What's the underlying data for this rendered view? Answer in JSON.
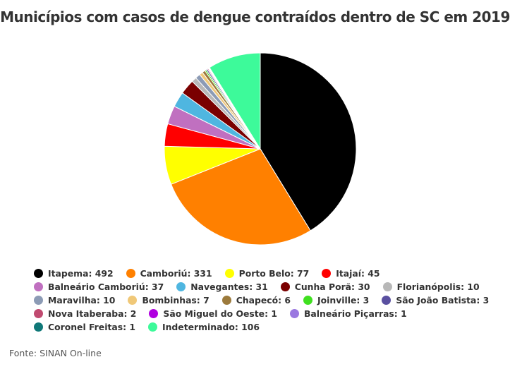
{
  "chart_data": {
    "type": "pie",
    "title": "Municípios com casos de dengue contraídos dentro de SC em 2019",
    "source": "Fonte: SINAN On-line",
    "slices": [
      {
        "label": "Itapema",
        "value": 492,
        "color": "#000000"
      },
      {
        "label": "Camboriú",
        "value": 331,
        "color": "#ff8000"
      },
      {
        "label": "Porto Belo",
        "value": 77,
        "color": "#ffff00"
      },
      {
        "label": "Itajaí",
        "value": 45,
        "color": "#ff0000"
      },
      {
        "label": "Balneário Camboriú",
        "value": 37,
        "color": "#c070c0"
      },
      {
        "label": "Navegantes",
        "value": 31,
        "color": "#4fb6e0"
      },
      {
        "label": "Cunha Porã",
        "value": 30,
        "color": "#7a0000"
      },
      {
        "label": "Florianópolis",
        "value": 10,
        "color": "#b8b8b8"
      },
      {
        "label": "Maravilha",
        "value": 10,
        "color": "#8c9bb5"
      },
      {
        "label": "Bombinhas",
        "value": 7,
        "color": "#f0c878"
      },
      {
        "label": "Chapecó",
        "value": 6,
        "color": "#9c7a3c"
      },
      {
        "label": "Joinville",
        "value": 3,
        "color": "#40e020"
      },
      {
        "label": "São João Batista",
        "value": 3,
        "color": "#5a50a0"
      },
      {
        "label": "Nova Itaberaba",
        "value": 2,
        "color": "#c04a70"
      },
      {
        "label": "São Miguel do Oeste",
        "value": 1,
        "color": "#b000e0"
      },
      {
        "label": "Balneário Piçarras",
        "value": 1,
        "color": "#9a78e0"
      },
      {
        "label": "Coronel Freitas",
        "value": 1,
        "color": "#107878"
      },
      {
        "label": "Indeterminado",
        "value": 106,
        "color": "#3dfa9a"
      }
    ],
    "legend_rows": [
      [
        0,
        1,
        2,
        3
      ],
      [
        4,
        5,
        6,
        7
      ],
      [
        8,
        9,
        10,
        11,
        12
      ],
      [
        13,
        14,
        15
      ],
      [
        16,
        17
      ]
    ]
  }
}
